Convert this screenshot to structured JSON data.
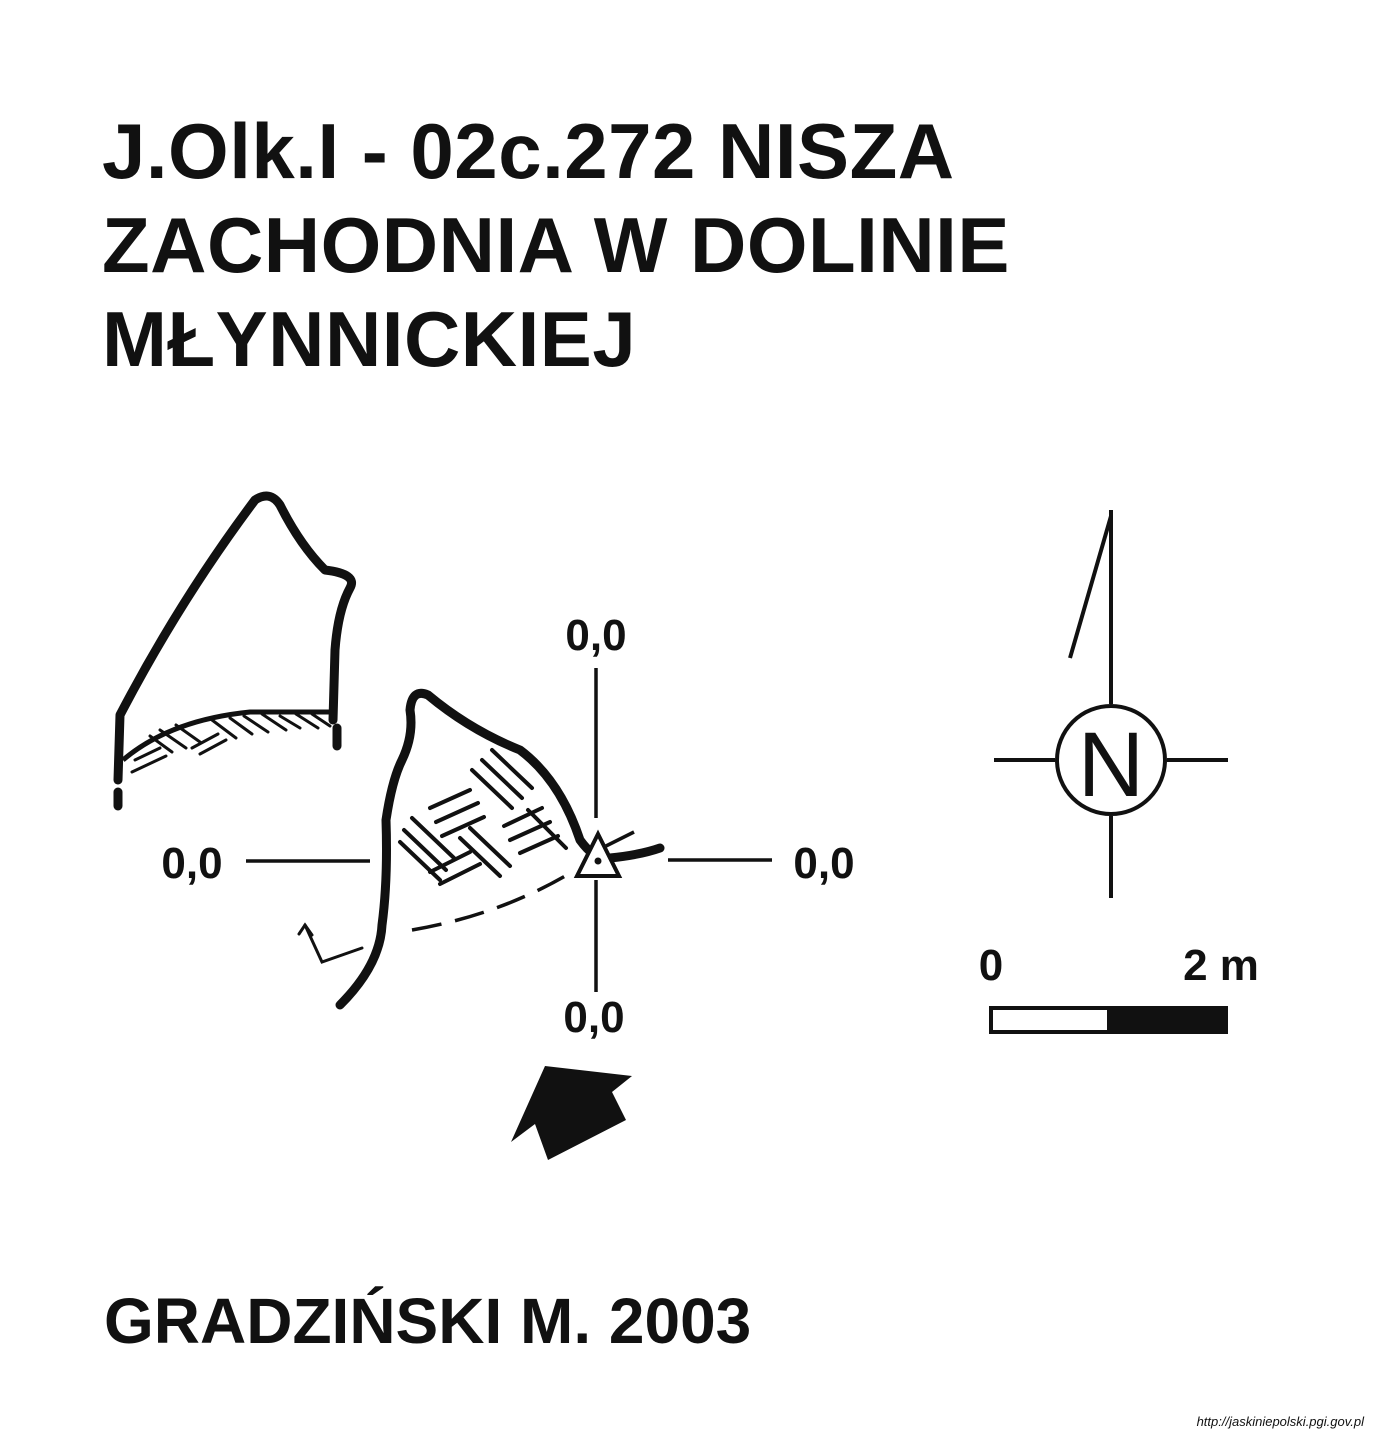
{
  "title": {
    "line1": "J.Olk.I - 02c.272  NISZA",
    "line2": "ZACHODNIA W DOLINIE",
    "line3": "MŁYNNICKIEJ"
  },
  "plan": {
    "datum_labels": {
      "top": "0,0",
      "left": "0,0",
      "right": "0,0",
      "bottom": "0,0"
    }
  },
  "compass": {
    "letter": "N"
  },
  "scale_bar": {
    "start_label": "0",
    "end_label": "2 m"
  },
  "author": "GRADZIŃSKI M. 2003",
  "source": "http://jaskiniepolski.pgi.gov.pl",
  "colors": {
    "ink": "#111111",
    "background": "#ffffff"
  }
}
